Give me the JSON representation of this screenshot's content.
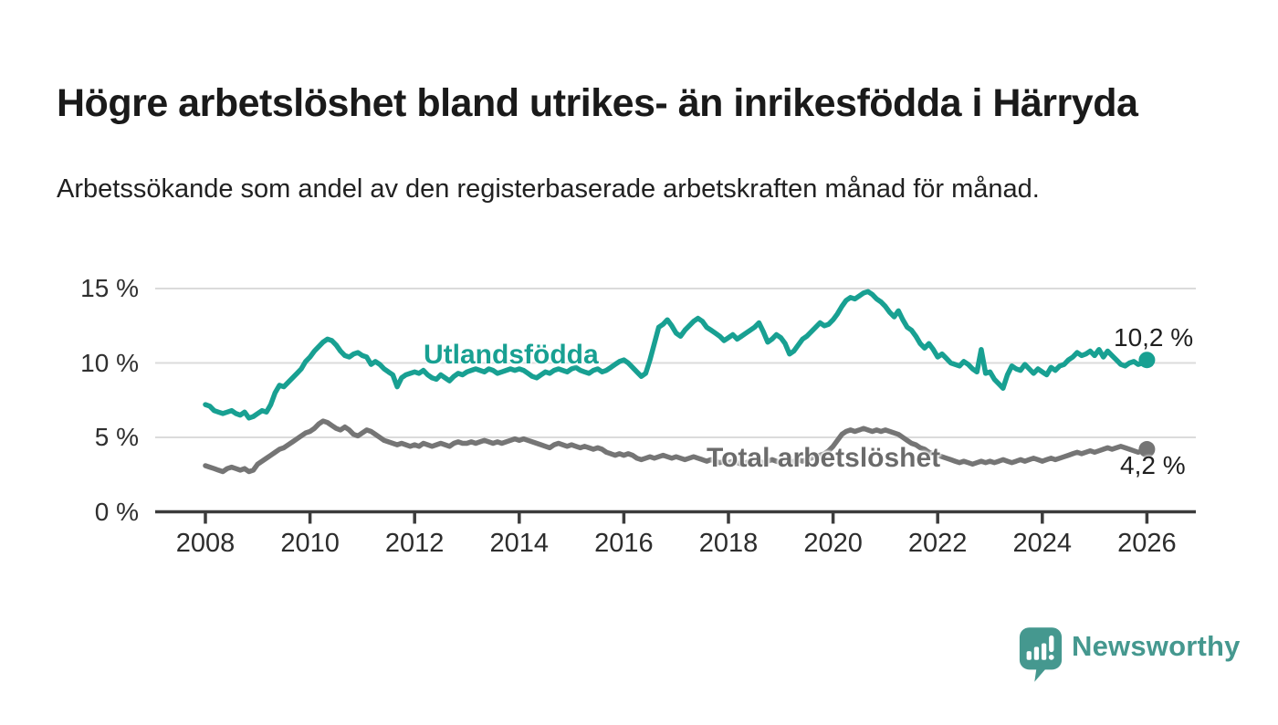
{
  "header": {
    "title": "Högre arbetslöshet bland utrikes- än inrikesfödda i Härryda",
    "subtitle": "Arbetssökande som andel av den registerbaserade arbetskraften månad för månad."
  },
  "branding": {
    "name": "Newsworthy",
    "color": "#45988F"
  },
  "chart_data": {
    "type": "line",
    "title": "Högre arbetslöshet bland utrikes- än inrikesfödda i Härryda",
    "xlabel": "",
    "ylabel": "",
    "x_unit": "year (monthly data)",
    "y_unit": "percent",
    "x_start": 2008.0,
    "x_end": 2026.0,
    "points_interval_months": 1,
    "xlim": [
      2007.05,
      2026.95
    ],
    "ylim": [
      0,
      16.5
    ],
    "grid": "horizontal",
    "legend_position": "inline-labels",
    "x_ticks": [
      2008,
      2010,
      2012,
      2014,
      2016,
      2018,
      2020,
      2022,
      2024,
      2026
    ],
    "x_tick_labels": [
      "2008",
      "2010",
      "2012",
      "2014",
      "2016",
      "2018",
      "2020",
      "2022",
      "2024",
      "2026"
    ],
    "y_ticks": [
      0,
      5,
      10,
      15
    ],
    "y_tick_labels": [
      "0 %",
      "5 %",
      "10 %",
      "15 %"
    ],
    "series": [
      {
        "name": "Utlandsfödda",
        "color": "#18A092",
        "end_label": "10,2 %",
        "last_value": 10.2,
        "values": [
          7.2,
          7.1,
          6.8,
          6.7,
          6.6,
          6.7,
          6.8,
          6.6,
          6.5,
          6.7,
          6.3,
          6.4,
          6.6,
          6.8,
          6.7,
          7.2,
          8.0,
          8.5,
          8.4,
          8.7,
          9.0,
          9.3,
          9.6,
          10.1,
          10.4,
          10.8,
          11.1,
          11.4,
          11.6,
          11.5,
          11.2,
          10.8,
          10.5,
          10.4,
          10.6,
          10.7,
          10.5,
          10.4,
          9.9,
          10.1,
          9.9,
          9.6,
          9.4,
          9.2,
          8.4,
          9.0,
          9.2,
          9.3,
          9.4,
          9.3,
          9.5,
          9.2,
          9.0,
          8.9,
          9.2,
          9.0,
          8.8,
          9.1,
          9.3,
          9.2,
          9.4,
          9.5,
          9.6,
          9.5,
          9.4,
          9.6,
          9.5,
          9.3,
          9.4,
          9.5,
          9.6,
          9.5,
          9.6,
          9.5,
          9.3,
          9.1,
          9.0,
          9.2,
          9.4,
          9.3,
          9.5,
          9.6,
          9.5,
          9.4,
          9.6,
          9.7,
          9.5,
          9.4,
          9.3,
          9.5,
          9.6,
          9.4,
          9.5,
          9.7,
          9.9,
          10.1,
          10.2,
          10.0,
          9.7,
          9.4,
          9.1,
          9.3,
          10.2,
          11.3,
          12.4,
          12.6,
          12.9,
          12.5,
          12.0,
          11.8,
          12.2,
          12.5,
          12.8,
          13.0,
          12.8,
          12.4,
          12.2,
          12.0,
          11.8,
          11.5,
          11.7,
          11.9,
          11.6,
          11.8,
          12.0,
          12.2,
          12.4,
          12.7,
          12.1,
          11.4,
          11.6,
          11.9,
          11.7,
          11.3,
          10.6,
          10.8,
          11.2,
          11.6,
          11.8,
          12.1,
          12.4,
          12.7,
          12.5,
          12.6,
          12.9,
          13.3,
          13.8,
          14.2,
          14.4,
          14.3,
          14.5,
          14.7,
          14.8,
          14.6,
          14.3,
          14.1,
          13.8,
          13.4,
          13.1,
          13.5,
          12.9,
          12.4,
          12.2,
          11.8,
          11.3,
          11.0,
          11.3,
          10.9,
          10.4,
          10.6,
          10.3,
          10.0,
          9.9,
          9.8,
          10.1,
          9.9,
          9.6,
          9.4,
          10.9,
          9.3,
          9.4,
          8.9,
          8.6,
          8.3,
          9.2,
          9.8,
          9.6,
          9.5,
          9.9,
          9.6,
          9.3,
          9.6,
          9.4,
          9.2,
          9.7,
          9.5,
          9.8,
          9.9,
          10.2,
          10.4,
          10.7,
          10.5,
          10.6,
          10.8,
          10.5,
          10.9,
          10.4,
          10.8,
          10.5,
          10.2,
          9.9,
          9.8,
          10.0,
          10.1,
          9.9,
          10.0,
          10.2
        ]
      },
      {
        "name": "Total arbetslöshet",
        "color": "#757575",
        "end_label": "4,2 %",
        "last_value": 4.2,
        "values": [
          3.1,
          3.0,
          2.9,
          2.8,
          2.7,
          2.9,
          3.0,
          2.9,
          2.8,
          2.9,
          2.7,
          2.8,
          3.2,
          3.4,
          3.6,
          3.8,
          4.0,
          4.2,
          4.3,
          4.5,
          4.7,
          4.9,
          5.1,
          5.3,
          5.4,
          5.6,
          5.9,
          6.1,
          6.0,
          5.8,
          5.6,
          5.5,
          5.7,
          5.5,
          5.2,
          5.1,
          5.3,
          5.5,
          5.4,
          5.2,
          5.0,
          4.8,
          4.7,
          4.6,
          4.5,
          4.6,
          4.5,
          4.4,
          4.5,
          4.4,
          4.6,
          4.5,
          4.4,
          4.5,
          4.6,
          4.5,
          4.4,
          4.6,
          4.7,
          4.6,
          4.6,
          4.7,
          4.6,
          4.7,
          4.8,
          4.7,
          4.6,
          4.7,
          4.6,
          4.7,
          4.8,
          4.9,
          4.8,
          4.9,
          4.8,
          4.7,
          4.6,
          4.5,
          4.4,
          4.3,
          4.5,
          4.6,
          4.5,
          4.4,
          4.5,
          4.4,
          4.3,
          4.4,
          4.3,
          4.2,
          4.3,
          4.2,
          4.0,
          3.9,
          3.8,
          3.9,
          3.8,
          3.9,
          3.8,
          3.6,
          3.5,
          3.6,
          3.7,
          3.6,
          3.7,
          3.8,
          3.7,
          3.6,
          3.7,
          3.6,
          3.5,
          3.6,
          3.7,
          3.6,
          3.5,
          3.4,
          3.5,
          3.4,
          3.3,
          3.4,
          3.3,
          3.4,
          3.3,
          3.2,
          3.3,
          3.4,
          3.3,
          3.4,
          3.3,
          3.4,
          3.5,
          3.4,
          3.3,
          3.4,
          3.3,
          3.4,
          3.5,
          3.4,
          3.5,
          3.6,
          3.7,
          3.8,
          3.9,
          4.1,
          4.4,
          4.8,
          5.2,
          5.4,
          5.5,
          5.4,
          5.5,
          5.6,
          5.5,
          5.4,
          5.5,
          5.4,
          5.5,
          5.4,
          5.3,
          5.2,
          5.0,
          4.8,
          4.6,
          4.5,
          4.3,
          4.2,
          4.0,
          3.9,
          3.8,
          3.7,
          3.6,
          3.5,
          3.4,
          3.3,
          3.4,
          3.3,
          3.2,
          3.3,
          3.4,
          3.3,
          3.4,
          3.3,
          3.4,
          3.5,
          3.4,
          3.3,
          3.4,
          3.5,
          3.4,
          3.5,
          3.6,
          3.5,
          3.4,
          3.5,
          3.6,
          3.5,
          3.6,
          3.7,
          3.8,
          3.9,
          4.0,
          3.9,
          4.0,
          4.1,
          4.0,
          4.1,
          4.2,
          4.3,
          4.2,
          4.3,
          4.4,
          4.3,
          4.2,
          4.1,
          4.0,
          4.1,
          4.2
        ]
      }
    ]
  }
}
